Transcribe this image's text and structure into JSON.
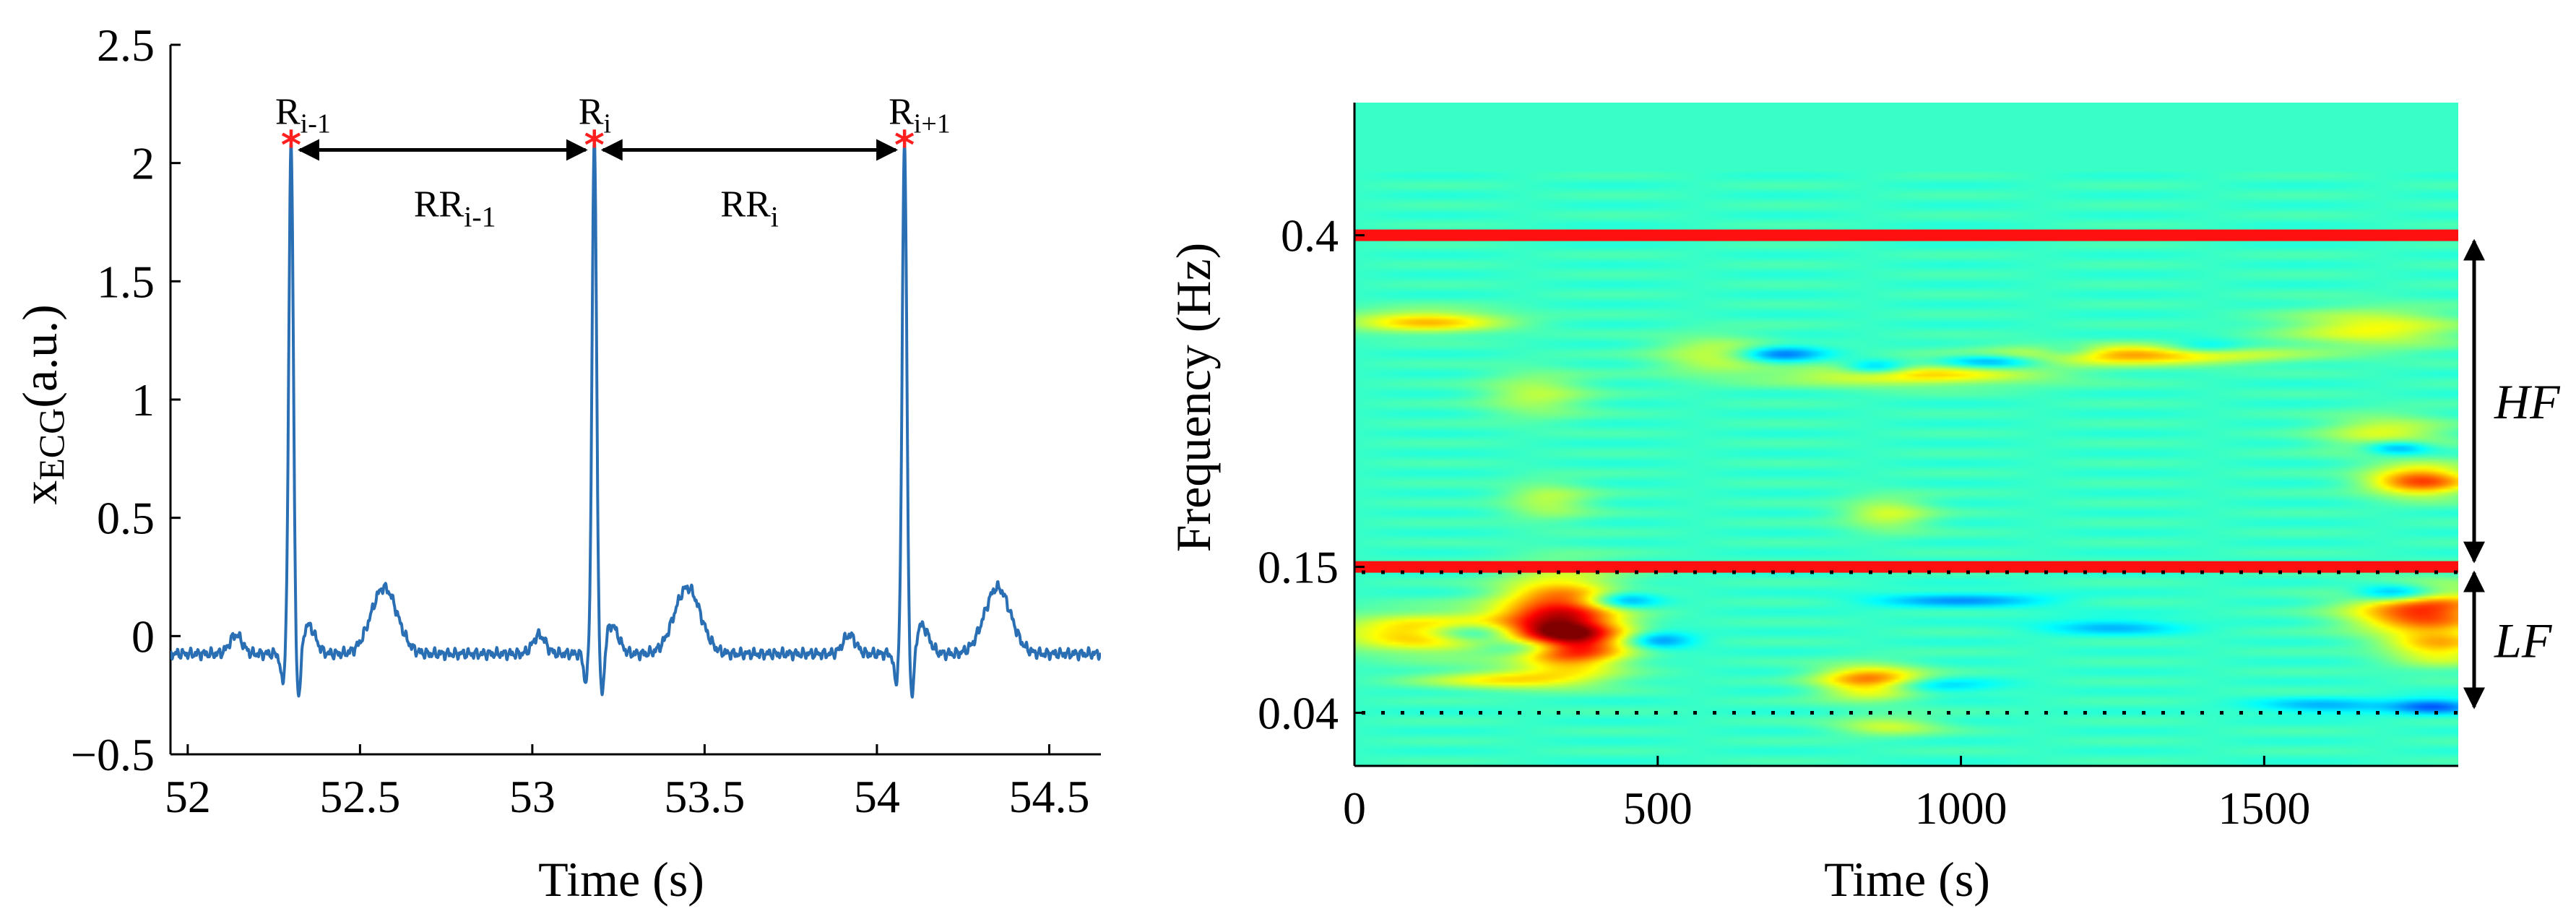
{
  "chart_data": [
    {
      "type": "line",
      "panel": "ecg",
      "title": "",
      "xlabel": "Time (s)",
      "ylabel_main": "x",
      "ylabel_sub": "ECG",
      "ylabel_tail": "(a.u.)",
      "xlim": [
        51.95,
        54.65
      ],
      "ylim": [
        -0.5,
        2.5
      ],
      "xticks": [
        52,
        52.5,
        53,
        53.5,
        54,
        54.5
      ],
      "xtick_labels": [
        "52",
        "52.5",
        "53",
        "53.5",
        "54",
        "54.5"
      ],
      "yticks": [
        -0.5,
        0,
        0.5,
        1,
        1.5,
        2,
        2.5
      ],
      "ytick_labels": [
        "−0.5",
        "0",
        "0.5",
        "1",
        "1.5",
        "2",
        "2.5"
      ],
      "line_color": "#2a6fb3",
      "marker_color": "#ff1f1f",
      "beats": [
        52.3,
        53.18,
        54.08
      ],
      "peak_value": 2.08,
      "r_peaks": [
        {
          "time": 52.3,
          "value": 2.08,
          "label_main": "R",
          "label_sub": "i-1"
        },
        {
          "time": 53.18,
          "value": 2.08,
          "label_main": "R",
          "label_sub": "i"
        },
        {
          "time": 54.08,
          "value": 2.08,
          "label_main": "R",
          "label_sub": "i+1"
        }
      ],
      "rr_intervals": [
        {
          "from": 52.3,
          "to": 53.18,
          "label_main": "RR",
          "label_sub": "i-1"
        },
        {
          "from": 53.18,
          "to": 54.08,
          "label_main": "RR",
          "label_sub": "i"
        }
      ]
    },
    {
      "type": "heatmap",
      "panel": "time-frequency",
      "title": "",
      "xlabel": "Time (s)",
      "ylabel": "Frequency (Hz)",
      "xlim": [
        0,
        1820
      ],
      "ylim": [
        0.0,
        0.5
      ],
      "xticks": [
        0,
        500,
        1000,
        1500
      ],
      "xtick_labels": [
        "0",
        "500",
        "1000",
        "1500"
      ],
      "yticks": [
        0.04,
        0.15,
        0.4
      ],
      "ytick_labels": [
        "0.04",
        "0.15",
        "0.4"
      ],
      "background_color": "#25f5d8",
      "band_lines": [
        {
          "freq": 0.4,
          "style": "solid",
          "color": "#ff1010"
        },
        {
          "freq": 0.15,
          "style": "solid",
          "color": "#ff1010"
        },
        {
          "freq": 0.146,
          "style": "dotted",
          "color": "#000000"
        },
        {
          "freq": 0.04,
          "style": "dotted",
          "color": "#000000"
        }
      ],
      "bands": [
        {
          "name": "HF",
          "from": 0.15,
          "to": 0.4
        },
        {
          "name": "LF",
          "from": 0.04,
          "to": 0.15
        }
      ],
      "blobs": [
        {
          "t": 120,
          "f": 0.335,
          "amp": 0.6,
          "st": 90,
          "sf": 0.006
        },
        {
          "t": 160,
          "f": 0.1,
          "amp": 0.85,
          "st": 120,
          "sf": 0.01
        },
        {
          "t": 200,
          "f": 0.1,
          "amp": -0.8,
          "st": 60,
          "sf": 0.006
        },
        {
          "t": 300,
          "f": 0.09,
          "amp": -0.7,
          "st": 60,
          "sf": 0.005
        },
        {
          "t": 340,
          "f": 0.115,
          "amp": 1.0,
          "st": 70,
          "sf": 0.02
        },
        {
          "t": 360,
          "f": 0.09,
          "amp": 0.9,
          "st": 60,
          "sf": 0.012
        },
        {
          "t": 260,
          "f": 0.065,
          "amp": 0.5,
          "st": 100,
          "sf": 0.005
        },
        {
          "t": 300,
          "f": 0.28,
          "amp": 0.3,
          "st": 60,
          "sf": 0.012
        },
        {
          "t": 320,
          "f": 0.2,
          "amp": 0.3,
          "st": 50,
          "sf": 0.01
        },
        {
          "t": 440,
          "f": 0.125,
          "amp": -0.5,
          "st": 40,
          "sf": 0.005
        },
        {
          "t": 500,
          "f": 0.095,
          "amp": -0.4,
          "st": 40,
          "sf": 0.005
        },
        {
          "t": 600,
          "f": 0.31,
          "amp": 0.35,
          "st": 70,
          "sf": 0.01
        },
        {
          "t": 700,
          "f": 0.31,
          "amp": -0.5,
          "st": 50,
          "sf": 0.005
        },
        {
          "t": 850,
          "f": 0.063,
          "amp": 0.95,
          "st": 60,
          "sf": 0.008
        },
        {
          "t": 900,
          "f": 0.06,
          "amp": -0.4,
          "st": 90,
          "sf": 0.004
        },
        {
          "t": 880,
          "f": 0.19,
          "amp": 0.35,
          "st": 50,
          "sf": 0.009
        },
        {
          "t": 880,
          "f": 0.03,
          "amp": 0.35,
          "st": 60,
          "sf": 0.005
        },
        {
          "t": 920,
          "f": 0.295,
          "amp": 0.55,
          "st": 150,
          "sf": 0.006
        },
        {
          "t": 860,
          "f": 0.3,
          "amp": -0.5,
          "st": 40,
          "sf": 0.004
        },
        {
          "t": 1050,
          "f": 0.305,
          "amp": -0.5,
          "st": 60,
          "sf": 0.004
        },
        {
          "t": 1000,
          "f": 0.125,
          "amp": -0.35,
          "st": 100,
          "sf": 0.004
        },
        {
          "t": 1280,
          "f": 0.31,
          "amp": 0.75,
          "st": 160,
          "sf": 0.005
        },
        {
          "t": 1180,
          "f": 0.312,
          "amp": -0.4,
          "st": 40,
          "sf": 0.004
        },
        {
          "t": 1400,
          "f": 0.315,
          "amp": -0.35,
          "st": 50,
          "sf": 0.004
        },
        {
          "t": 1250,
          "f": 0.105,
          "amp": -0.3,
          "st": 80,
          "sf": 0.004
        },
        {
          "t": 1680,
          "f": 0.33,
          "amp": 0.45,
          "st": 100,
          "sf": 0.01
        },
        {
          "t": 1700,
          "f": 0.25,
          "amp": 0.4,
          "st": 70,
          "sf": 0.01
        },
        {
          "t": 1760,
          "f": 0.215,
          "amp": 0.9,
          "st": 60,
          "sf": 0.008
        },
        {
          "t": 1720,
          "f": 0.24,
          "amp": -0.5,
          "st": 40,
          "sf": 0.004
        },
        {
          "t": 1720,
          "f": 0.13,
          "amp": -0.7,
          "st": 50,
          "sf": 0.005
        },
        {
          "t": 1760,
          "f": 0.118,
          "amp": 1.0,
          "st": 80,
          "sf": 0.012
        },
        {
          "t": 1790,
          "f": 0.09,
          "amp": 0.55,
          "st": 60,
          "sf": 0.01
        },
        {
          "t": 1780,
          "f": 0.045,
          "amp": -0.5,
          "st": 50,
          "sf": 0.004
        },
        {
          "t": 1600,
          "f": 0.045,
          "amp": -0.3,
          "st": 80,
          "sf": 0.004
        }
      ]
    }
  ]
}
